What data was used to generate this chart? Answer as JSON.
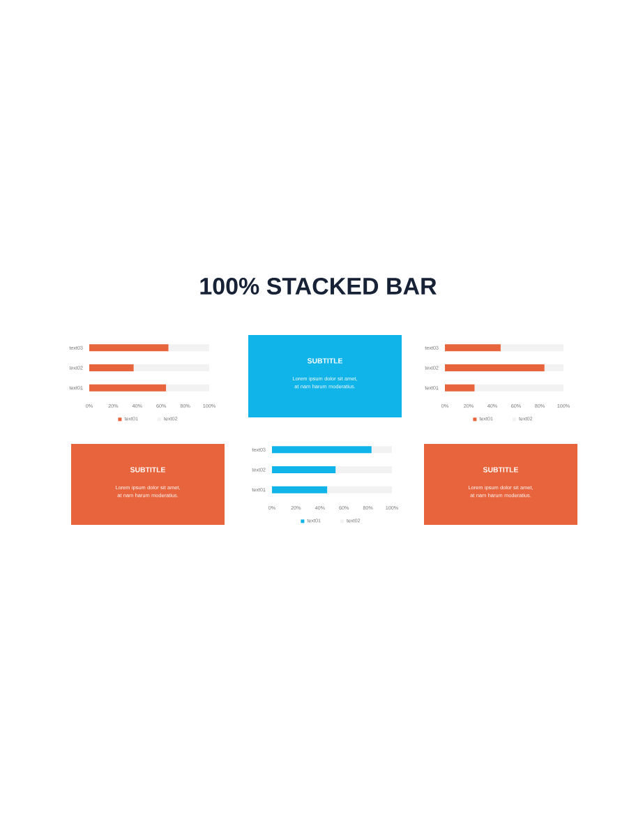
{
  "chart_data": [
    {
      "type": "other",
      "title": "100% STACKED BAR"
    },
    {
      "type": "bar",
      "orientation": "horizontal",
      "stacked": true,
      "categories": [
        "text03",
        "text02",
        "text01"
      ],
      "series": [
        {
          "name": "text01",
          "color": "#e8643c",
          "values": [
            66,
            37,
            64
          ]
        },
        {
          "name": "text02",
          "color": "#f2f2f2",
          "values": [
            34,
            63,
            36
          ]
        }
      ],
      "xlim": [
        0,
        100
      ],
      "xticks": [
        {
          "value": 0,
          "label": "0%"
        },
        {
          "value": 20,
          "label": "20%"
        },
        {
          "value": 40,
          "label": "40%"
        },
        {
          "value": 60,
          "label": "60%"
        },
        {
          "value": 80,
          "label": "80%"
        },
        {
          "value": 100,
          "label": "100%"
        }
      ],
      "legend": "bottom"
    },
    {
      "type": "other",
      "color": "#11b4e8",
      "title": "SUBTITLE",
      "annotations": [
        "Lorem ipsum dolor sit amet, at nam harum moderatius."
      ]
    },
    {
      "type": "bar",
      "orientation": "horizontal",
      "stacked": true,
      "categories": [
        "text03",
        "text02",
        "text01"
      ],
      "series": [
        {
          "name": "text01",
          "color": "#e8643c",
          "values": [
            47,
            84,
            25
          ]
        },
        {
          "name": "text02",
          "color": "#f2f2f2",
          "values": [
            53,
            16,
            75
          ]
        }
      ],
      "xlim": [
        0,
        100
      ],
      "xticks": [
        {
          "value": 0,
          "label": "0%"
        },
        {
          "value": 20,
          "label": "20%"
        },
        {
          "value": 40,
          "label": "40%"
        },
        {
          "value": 60,
          "label": "60%"
        },
        {
          "value": 80,
          "label": "80%"
        },
        {
          "value": 100,
          "label": "100%"
        }
      ],
      "legend": "bottom"
    },
    {
      "type": "other",
      "color": "#e8643c",
      "title": "SUBTITLE",
      "annotations": [
        "Lorem ipsum dolor sit amet, at nam harum moderatius."
      ]
    },
    {
      "type": "bar",
      "orientation": "horizontal",
      "stacked": true,
      "categories": [
        "text03",
        "text02",
        "text01"
      ],
      "series": [
        {
          "name": "text01",
          "color": "#11b4e8",
          "values": [
            83,
            53,
            46
          ]
        },
        {
          "name": "text02",
          "color": "#f2f2f2",
          "values": [
            17,
            47,
            54
          ]
        }
      ],
      "xlim": [
        0,
        100
      ],
      "xticks": [
        {
          "value": 0,
          "label": "0%"
        },
        {
          "value": 20,
          "label": "20%"
        },
        {
          "value": 40,
          "label": "40%"
        },
        {
          "value": 60,
          "label": "60%"
        },
        {
          "value": 80,
          "label": "80%"
        },
        {
          "value": 100,
          "label": "100%"
        }
      ],
      "legend": "bottom"
    },
    {
      "type": "other",
      "color": "#e8643c",
      "title": "SUBTITLE",
      "annotations": [
        "Lorem ipsum dolor sit amet, at nam harum moderatius."
      ]
    }
  ]
}
